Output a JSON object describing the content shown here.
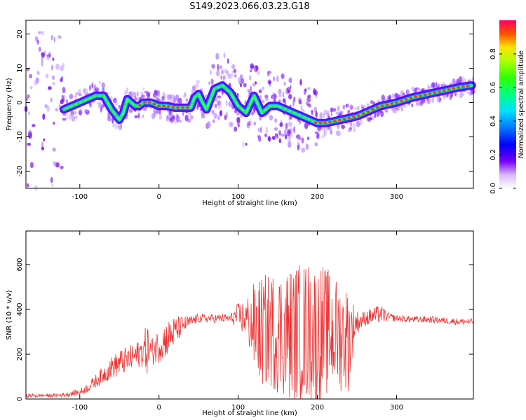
{
  "title": "S149.2023.066.03.23.G18",
  "chart_data": [
    {
      "type": "heatmap",
      "xlabel": "Height of straight line (km)",
      "ylabel": "Frequency (Hz)",
      "xlim": [
        -168,
        397
      ],
      "ylim": [
        -25,
        24
      ],
      "xticks": [
        -100,
        0,
        100,
        200,
        300
      ],
      "yticks": [
        -20,
        -10,
        0,
        10,
        20
      ],
      "colorbar": {
        "label": "Normalized spectral amplitude",
        "range": [
          0,
          1
        ],
        "ticks": [
          0.0,
          0.2,
          0.4,
          0.6,
          0.8
        ]
      },
      "ridge": {
        "x": [
          -120,
          -110,
          -100,
          -90,
          -80,
          -70,
          -60,
          -50,
          -45,
          -40,
          -35,
          -30,
          -25,
          -20,
          -10,
          0,
          10,
          20,
          30,
          40,
          45,
          50,
          55,
          60,
          65,
          70,
          80,
          90,
          100,
          110,
          120,
          130,
          140,
          150,
          160,
          170,
          180,
          190,
          200,
          210,
          220,
          230,
          240,
          250,
          260,
          280,
          300,
          320,
          340,
          360,
          380,
          395
        ],
        "frequency": [
          -2,
          -1,
          0,
          1,
          2,
          2,
          -2,
          -5,
          -3,
          1,
          0,
          -1,
          -1,
          0,
          0,
          -1,
          -1,
          -1.5,
          -1.5,
          -1.5,
          1.5,
          2.5,
          0,
          -2,
          1,
          4,
          5,
          3,
          -1,
          -3,
          2,
          -3,
          -1,
          -1,
          -2,
          -3,
          -4,
          -5,
          -6,
          -6,
          -5.5,
          -5,
          -4.5,
          -4,
          -3,
          -1,
          0,
          1.5,
          2.5,
          3.5,
          4.5,
          5
        ]
      }
    },
    {
      "type": "line",
      "xlabel": "Height of straight line (km)",
      "ylabel": "SNR (10 * v/v)",
      "xlim": [
        -168,
        397
      ],
      "ylim": [
        0,
        750
      ],
      "xticks": [
        -100,
        0,
        100,
        200,
        300
      ],
      "yticks": [
        0,
        200,
        400,
        600
      ],
      "series": [
        {
          "color": "#ee3333",
          "x": [
            -168,
            -140,
            -120,
            -100,
            -90,
            -80,
            -70,
            -60,
            -50,
            -40,
            -30,
            -20,
            -15,
            -10,
            0,
            10,
            20,
            30,
            40,
            50,
            60,
            70,
            80,
            90,
            100,
            110,
            120,
            130,
            140,
            150,
            160,
            170,
            180,
            190,
            200,
            210,
            220,
            230,
            240,
            248,
            255,
            260,
            270,
            280,
            290,
            300,
            320,
            340,
            360,
            380,
            397
          ],
          "mean": [
            15,
            15,
            18,
            30,
            50,
            80,
            110,
            140,
            160,
            175,
            190,
            215,
            230,
            210,
            240,
            270,
            300,
            330,
            345,
            360,
            360,
            360,
            360,
            360,
            370,
            360,
            320,
            300,
            310,
            300,
            300,
            290,
            300,
            300,
            290,
            300,
            290,
            280,
            270,
            340,
            350,
            360,
            370,
            380,
            365,
            360,
            355,
            355,
            350,
            345,
            345
          ],
          "spread": [
            8,
            8,
            10,
            15,
            20,
            30,
            40,
            50,
            60,
            60,
            60,
            70,
            120,
            60,
            80,
            80,
            70,
            40,
            25,
            20,
            20,
            20,
            20,
            20,
            60,
            90,
            200,
            250,
            260,
            280,
            300,
            310,
            320,
            320,
            330,
            300,
            260,
            250,
            240,
            60,
            40,
            35,
            40,
            40,
            20,
            15,
            15,
            15,
            15,
            15,
            15
          ]
        }
      ]
    }
  ]
}
